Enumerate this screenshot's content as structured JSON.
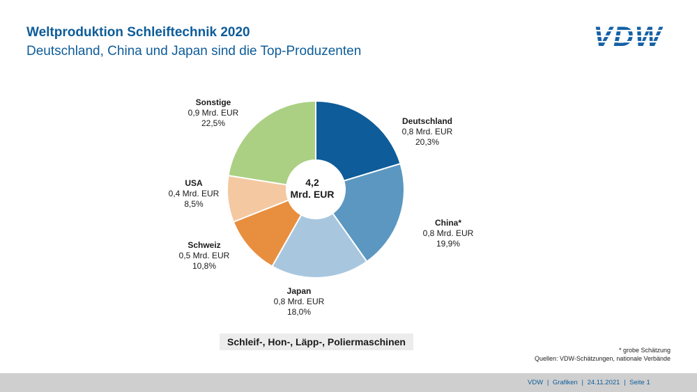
{
  "header": {
    "title": "Weltproduktion Schleiftechnik 2020",
    "subtitle": "Deutschland, China und Japan sind die Top-Produzenten",
    "logo_text": "VDW"
  },
  "colors": {
    "title": "#0d5c99",
    "logo": "#1460a5"
  },
  "chart_data": {
    "type": "pie",
    "style": "donut",
    "center_value": "4,2",
    "center_unit": "Mrd. EUR",
    "categories": [
      "Deutschland",
      "China*",
      "Japan",
      "Schweiz",
      "USA",
      "Sonstige"
    ],
    "values": [
      20.3,
      19.9,
      18.0,
      10.8,
      8.5,
      22.5
    ],
    "amounts": [
      "0,8 Mrd. EUR",
      "0,8 Mrd. EUR",
      "0,8 Mrd. EUR",
      "0,5 Mrd. EUR",
      "0,4 Mrd. EUR",
      "0,9 Mrd. EUR"
    ],
    "percent_labels": [
      "20,3%",
      "19,9%",
      "18,0%",
      "10,8%",
      "8,5%",
      "22,5%"
    ],
    "colors": [
      "#0e5c99",
      "#5b97c1",
      "#a8c7df",
      "#e88f3f",
      "#f4c8a0",
      "#abd083"
    ],
    "caption": "Schleif-, Hon-, Läpp-, Poliermaschinen"
  },
  "notes": {
    "estimate": "* grobe Schätzung",
    "sources": "Quellen: VDW-Schätzungen, nationale Verbände"
  },
  "footer": {
    "org": "VDW",
    "sep1": "|",
    "section": "Grafiken",
    "sep2": "|",
    "date": "24.11.2021",
    "sep3": "|",
    "page": "Seite  1"
  }
}
